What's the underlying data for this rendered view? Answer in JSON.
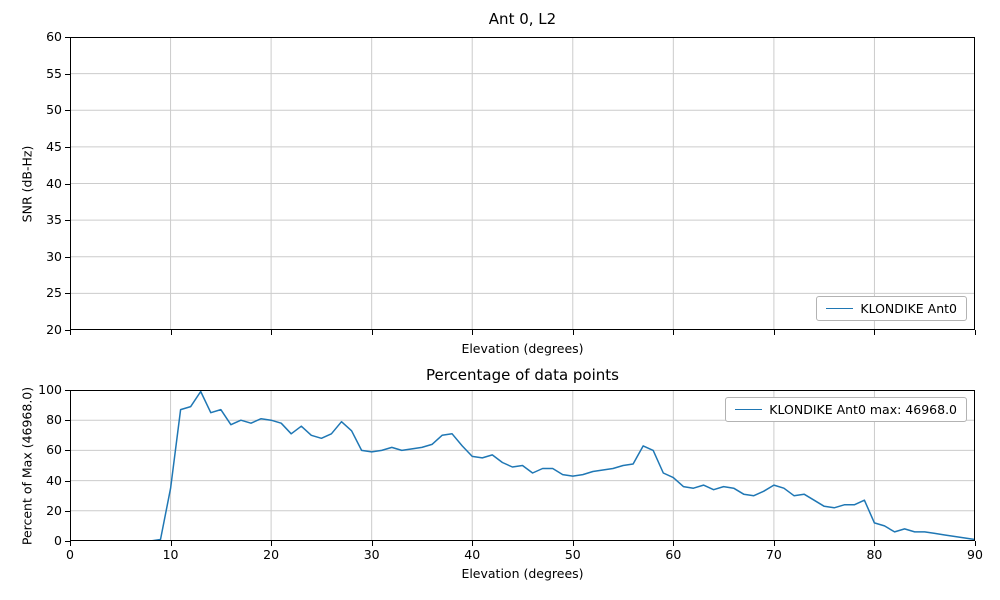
{
  "style": {
    "background": "#ffffff",
    "line_color": "#1f77b4",
    "grid_color": "#cccccc",
    "legend_border": "#b3b3b3",
    "axis_color": "#000000"
  },
  "chart_data": [
    {
      "type": "line",
      "title": "Ant 0, L2",
      "xlabel": "Elevation (degrees)",
      "ylabel": "SNR (dB-Hz)",
      "xlim": [
        0,
        90
      ],
      "ylim": [
        20,
        60
      ],
      "xticks": [
        0,
        10,
        20,
        30,
        40,
        50,
        60,
        70,
        80,
        90
      ],
      "yticks": [
        20,
        25,
        30,
        35,
        40,
        45,
        50,
        55,
        60
      ],
      "show_xtick_labels": false,
      "grid": true,
      "legend_position": "lower right",
      "legend": [
        "KLONDIKE Ant0"
      ],
      "series": []
    },
    {
      "type": "line",
      "title": "Percentage of data points",
      "xlabel": "Elevation (degrees)",
      "ylabel": "Percent of Max (46968.0)",
      "xlim": [
        0,
        90
      ],
      "ylim": [
        0,
        100
      ],
      "xticks": [
        0,
        10,
        20,
        30,
        40,
        50,
        60,
        70,
        80,
        90
      ],
      "yticks": [
        0,
        20,
        40,
        60,
        80,
        100
      ],
      "show_xtick_labels": true,
      "grid": true,
      "legend_position": "upper right",
      "legend": [
        "KLONDIKE Ant0 max: 46968.0"
      ],
      "max_value": 46968.0,
      "series": [
        {
          "name": "KLONDIKE Ant0",
          "x": [
            0,
            1,
            2,
            3,
            4,
            5,
            6,
            7,
            8,
            9,
            10,
            11,
            12,
            13,
            14,
            15,
            16,
            17,
            18,
            19,
            20,
            21,
            22,
            23,
            24,
            25,
            26,
            27,
            28,
            29,
            30,
            31,
            32,
            33,
            34,
            35,
            36,
            37,
            38,
            39,
            40,
            41,
            42,
            43,
            44,
            45,
            46,
            47,
            48,
            49,
            50,
            51,
            52,
            53,
            54,
            55,
            56,
            57,
            58,
            59,
            60,
            61,
            62,
            63,
            64,
            65,
            66,
            67,
            68,
            69,
            70,
            71,
            72,
            73,
            74,
            75,
            76,
            77,
            78,
            79,
            80,
            81,
            82,
            83,
            84,
            85,
            86,
            87,
            88,
            89,
            90
          ],
          "values": [
            0,
            0,
            0,
            0,
            0,
            0,
            0,
            0,
            0,
            1,
            35,
            87,
            89,
            99,
            85,
            87,
            77,
            80,
            78,
            81,
            80,
            78,
            71,
            76,
            70,
            68,
            71,
            79,
            73,
            60,
            59,
            60,
            62,
            60,
            61,
            62,
            64,
            70,
            71,
            63,
            56,
            55,
            57,
            52,
            49,
            50,
            45,
            48,
            48,
            44,
            43,
            44,
            46,
            47,
            48,
            50,
            51,
            63,
            60,
            45,
            42,
            36,
            35,
            37,
            34,
            36,
            35,
            31,
            30,
            33,
            37,
            35,
            30,
            31,
            27,
            23,
            22,
            24,
            24,
            27,
            12,
            10,
            6,
            8,
            6,
            6,
            5,
            4,
            3,
            2,
            1
          ]
        }
      ]
    }
  ]
}
